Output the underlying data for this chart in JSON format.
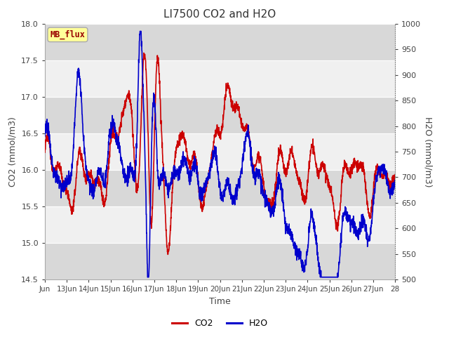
{
  "title": "LI7500 CO2 and H2O",
  "xlabel": "Time",
  "ylabel_left": "CO2 (mmol/m3)",
  "ylabel_right": "H2O (mmol/m3)",
  "co2_ylim": [
    14.5,
    18.0
  ],
  "h2o_ylim": [
    500,
    1000
  ],
  "co2_color": "#cc0000",
  "h2o_color": "#0000cc",
  "co2_linewidth": 1.2,
  "h2o_linewidth": 1.2,
  "bg_color": "#ffffff",
  "plot_bg_light": "#f0f0f0",
  "plot_bg_dark": "#d8d8d8",
  "grid_color": "#ffffff",
  "label_box_text": "MB_flux",
  "label_box_color": "#ffff99",
  "label_box_edge": "#aaaaaa",
  "label_text_color": "#990000",
  "x_tick_labels": [
    "Jun",
    "13Jun",
    "14Jun",
    "15Jun",
    "16Jun",
    "17Jun",
    "18Jun",
    "19Jun",
    "20Jun",
    "21Jun",
    "22Jun",
    "23Jun",
    "24Jun",
    "25Jun",
    "26Jun",
    "27Jun",
    "28"
  ],
  "x_tick_positions": [
    0,
    1,
    2,
    3,
    4,
    5,
    6,
    7,
    8,
    9,
    10,
    11,
    12,
    13,
    14,
    15,
    16
  ],
  "yticks_left": [
    14.5,
    15.0,
    15.5,
    16.0,
    16.5,
    17.0,
    17.5,
    18.0
  ],
  "yticks_right": [
    500,
    550,
    600,
    650,
    700,
    750,
    800,
    850,
    900,
    950,
    1000
  ],
  "n_points": 2000
}
